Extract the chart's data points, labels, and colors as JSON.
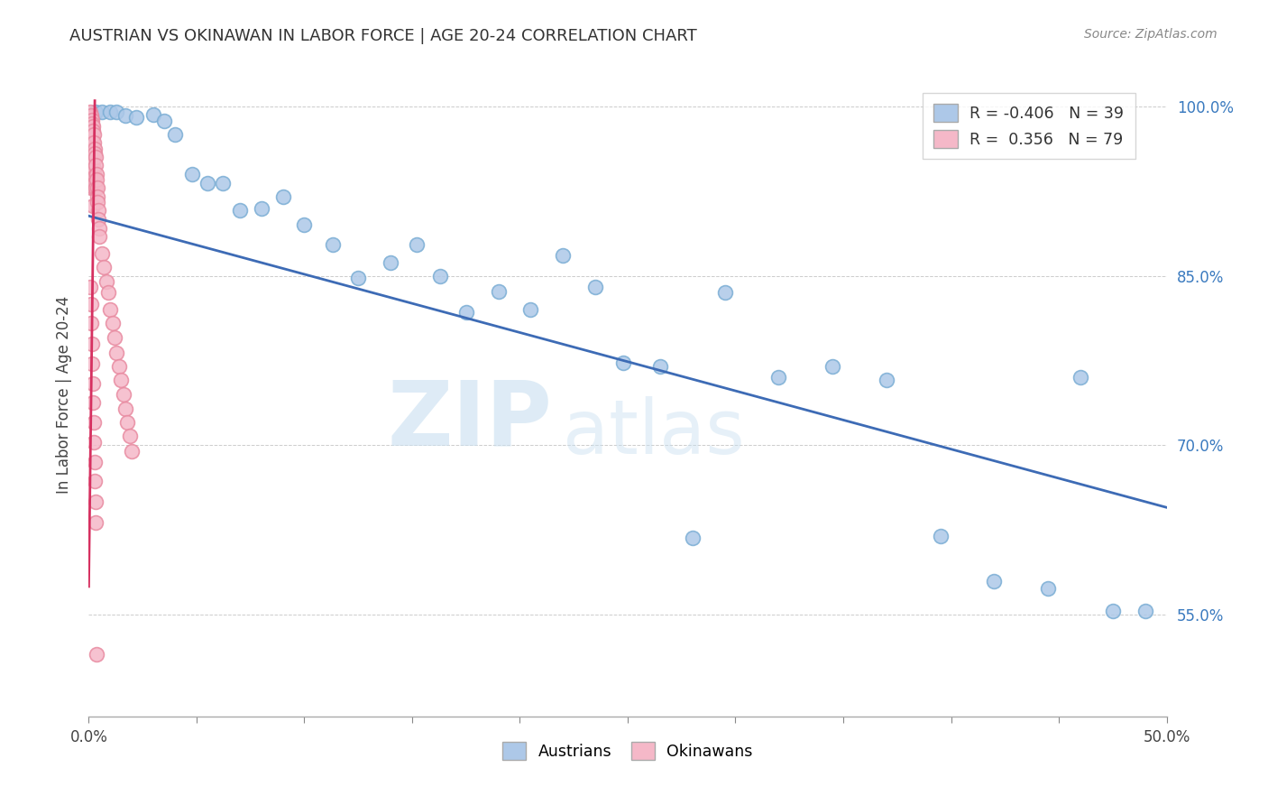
{
  "title": "AUSTRIAN VS OKINAWAN IN LABOR FORCE | AGE 20-24 CORRELATION CHART",
  "source": "Source: ZipAtlas.com",
  "ylabel": "In Labor Force | Age 20-24",
  "xlim": [
    0.0,
    0.5
  ],
  "ylim": [
    0.46,
    1.03
  ],
  "xticks": [
    0.0,
    0.05,
    0.1,
    0.15,
    0.2,
    0.25,
    0.3,
    0.35,
    0.4,
    0.45,
    0.5
  ],
  "xtick_labels_show": [
    0.0,
    0.5
  ],
  "xtick_labels": [
    "0.0%",
    "",
    "",
    "",
    "",
    "",
    "",
    "",
    "",
    "",
    "50.0%"
  ],
  "yticks": [
    0.55,
    0.7,
    0.85,
    1.0
  ],
  "ytick_labels": [
    "55.0%",
    "70.0%",
    "85.0%",
    "100.0%"
  ],
  "r_austrians": -0.406,
  "n_austrians": 39,
  "r_okinawans": 0.356,
  "n_okinawans": 79,
  "color_austrians": "#adc8e8",
  "edge_color_austrians": "#7aadd4",
  "color_okinawans": "#f5b8c8",
  "edge_color_okinawans": "#e88aa0",
  "line_color_austrians": "#3d6bb5",
  "line_color_okinawans": "#d63060",
  "watermark_zip": "ZIP",
  "watermark_atlas": "atlas",
  "legend_labels": [
    "Austrians",
    "Okinawans"
  ],
  "austrians_x": [
    0.003,
    0.006,
    0.01,
    0.013,
    0.017,
    0.022,
    0.03,
    0.035,
    0.04,
    0.048,
    0.055,
    0.062,
    0.07,
    0.08,
    0.09,
    0.1,
    0.113,
    0.125,
    0.14,
    0.152,
    0.163,
    0.175,
    0.19,
    0.205,
    0.22,
    0.235,
    0.248,
    0.265,
    0.28,
    0.295,
    0.32,
    0.345,
    0.37,
    0.395,
    0.42,
    0.445,
    0.46,
    0.475,
    0.49
  ],
  "austrians_y": [
    0.995,
    0.995,
    0.995,
    0.995,
    0.992,
    0.99,
    0.993,
    0.987,
    0.975,
    0.94,
    0.932,
    0.932,
    0.908,
    0.91,
    0.92,
    0.895,
    0.878,
    0.848,
    0.862,
    0.878,
    0.85,
    0.818,
    0.836,
    0.82,
    0.868,
    0.84,
    0.773,
    0.77,
    0.618,
    0.835,
    0.76,
    0.77,
    0.758,
    0.62,
    0.58,
    0.573,
    0.76,
    0.553,
    0.553
  ],
  "okinawans_x": [
    0.0008,
    0.0008,
    0.0008,
    0.0008,
    0.001,
    0.001,
    0.001,
    0.001,
    0.001,
    0.0012,
    0.0012,
    0.0012,
    0.0012,
    0.0012,
    0.0014,
    0.0014,
    0.0014,
    0.0014,
    0.0016,
    0.0016,
    0.0016,
    0.0016,
    0.0018,
    0.0018,
    0.0018,
    0.002,
    0.002,
    0.002,
    0.002,
    0.0022,
    0.0022,
    0.0022,
    0.0024,
    0.0024,
    0.0026,
    0.0026,
    0.0028,
    0.0028,
    0.003,
    0.003,
    0.0032,
    0.0034,
    0.0036,
    0.0038,
    0.004,
    0.0042,
    0.0044,
    0.0046,
    0.0048,
    0.005,
    0.006,
    0.007,
    0.008,
    0.009,
    0.01,
    0.011,
    0.012,
    0.013,
    0.014,
    0.015,
    0.016,
    0.017,
    0.018,
    0.019,
    0.02,
    0.0008,
    0.001,
    0.0012,
    0.0014,
    0.0016,
    0.0018,
    0.002,
    0.0022,
    0.0024,
    0.0026,
    0.0028,
    0.003,
    0.0032,
    0.0034
  ],
  "okinawans_y": [
    0.995,
    0.985,
    0.975,
    0.962,
    0.99,
    0.978,
    0.965,
    0.95,
    0.935,
    0.992,
    0.978,
    0.962,
    0.945,
    0.928,
    0.988,
    0.972,
    0.955,
    0.935,
    0.985,
    0.968,
    0.95,
    0.93,
    0.982,
    0.962,
    0.94,
    0.978,
    0.958,
    0.935,
    0.912,
    0.975,
    0.952,
    0.928,
    0.968,
    0.945,
    0.962,
    0.938,
    0.958,
    0.932,
    0.955,
    0.928,
    0.948,
    0.94,
    0.935,
    0.928,
    0.92,
    0.915,
    0.908,
    0.9,
    0.892,
    0.885,
    0.87,
    0.858,
    0.845,
    0.835,
    0.82,
    0.808,
    0.795,
    0.782,
    0.77,
    0.758,
    0.745,
    0.732,
    0.72,
    0.708,
    0.695,
    0.84,
    0.825,
    0.808,
    0.79,
    0.772,
    0.755,
    0.738,
    0.72,
    0.703,
    0.685,
    0.668,
    0.65,
    0.632,
    0.515
  ]
}
